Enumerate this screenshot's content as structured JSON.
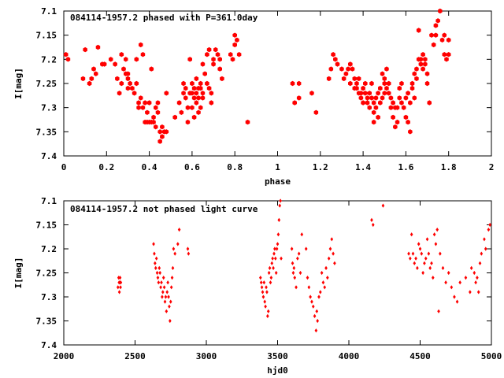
{
  "theme": {
    "background": "#ffffff",
    "point_color": "#ff0000",
    "axis_color": "#000000"
  },
  "chart_data": [
    {
      "type": "scatter",
      "title": "084114-1957.2 phased with P=361.0day",
      "xlabel": "phase",
      "ylabel": "I[mag]",
      "xlim": [
        0,
        2
      ],
      "ylim": [
        7.1,
        7.4
      ],
      "y_inverted": true,
      "grid": false,
      "marker": "filled-hexagon",
      "xticks": [
        "0",
        "0.2",
        "0.4",
        "0.6",
        "0.8",
        "1",
        "1.2",
        "1.4",
        "1.6",
        "1.8",
        "2"
      ],
      "yticks": [
        "7.1",
        "7.15",
        "7.2",
        "7.25",
        "7.3",
        "7.35",
        "7.4"
      ],
      "points": [
        [
          0.01,
          7.19
        ],
        [
          0.02,
          7.2
        ],
        [
          0.1,
          7.18
        ],
        [
          0.09,
          7.24
        ],
        [
          0.12,
          7.25
        ],
        [
          0.13,
          7.24
        ],
        [
          0.14,
          7.22
        ],
        [
          0.15,
          7.23
        ],
        [
          0.16,
          7.175
        ],
        [
          0.18,
          7.21
        ],
        [
          0.19,
          7.21
        ],
        [
          0.22,
          7.2
        ],
        [
          0.24,
          7.21
        ],
        [
          0.25,
          7.24
        ],
        [
          0.26,
          7.27
        ],
        [
          0.27,
          7.25
        ],
        [
          0.27,
          7.19
        ],
        [
          0.28,
          7.22
        ],
        [
          0.29,
          7.2
        ],
        [
          0.29,
          7.23
        ],
        [
          0.3,
          7.23
        ],
        [
          0.3,
          7.26
        ],
        [
          0.3,
          7.24
        ],
        [
          0.31,
          7.25
        ],
        [
          0.32,
          7.26
        ],
        [
          0.33,
          7.27
        ],
        [
          0.34,
          7.25
        ],
        [
          0.34,
          7.2
        ],
        [
          0.35,
          7.29
        ],
        [
          0.35,
          7.3
        ],
        [
          0.36,
          7.28
        ],
        [
          0.36,
          7.17
        ],
        [
          0.37,
          7.19
        ],
        [
          0.37,
          7.3
        ],
        [
          0.38,
          7.29
        ],
        [
          0.38,
          7.33
        ],
        [
          0.39,
          7.31
        ],
        [
          0.39,
          7.33
        ],
        [
          0.4,
          7.29
        ],
        [
          0.4,
          7.33
        ],
        [
          0.41,
          7.33
        ],
        [
          0.41,
          7.22
        ],
        [
          0.42,
          7.33
        ],
        [
          0.42,
          7.32
        ],
        [
          0.43,
          7.34
        ],
        [
          0.43,
          7.3
        ],
        [
          0.44,
          7.29
        ],
        [
          0.44,
          7.31
        ],
        [
          0.45,
          7.35
        ],
        [
          0.45,
          7.37
        ],
        [
          0.46,
          7.36
        ],
        [
          0.46,
          7.34
        ],
        [
          0.47,
          7.35
        ],
        [
          0.48,
          7.27
        ],
        [
          0.48,
          7.35
        ],
        [
          0.52,
          7.32
        ],
        [
          0.54,
          7.29
        ],
        [
          0.55,
          7.31
        ],
        [
          0.56,
          7.27
        ],
        [
          0.56,
          7.25
        ],
        [
          0.57,
          7.26
        ],
        [
          0.57,
          7.28
        ],
        [
          0.58,
          7.3
        ],
        [
          0.58,
          7.33
        ],
        [
          0.59,
          7.2
        ],
        [
          0.59,
          7.27
        ],
        [
          0.6,
          7.25
        ],
        [
          0.6,
          7.27
        ],
        [
          0.6,
          7.3
        ],
        [
          0.61,
          7.32
        ],
        [
          0.61,
          7.26
        ],
        [
          0.61,
          7.28
        ],
        [
          0.62,
          7.24
        ],
        [
          0.62,
          7.27
        ],
        [
          0.62,
          7.29
        ],
        [
          0.63,
          7.31
        ],
        [
          0.63,
          7.26
        ],
        [
          0.63,
          7.28
        ],
        [
          0.64,
          7.25
        ],
        [
          0.64,
          7.3
        ],
        [
          0.64,
          7.26
        ],
        [
          0.65,
          7.27
        ],
        [
          0.65,
          7.21
        ],
        [
          0.65,
          7.28
        ],
        [
          0.66,
          7.23
        ],
        [
          0.67,
          7.25
        ],
        [
          0.67,
          7.19
        ],
        [
          0.68,
          7.18
        ],
        [
          0.68,
          7.26
        ],
        [
          0.69,
          7.27
        ],
        [
          0.69,
          7.29
        ],
        [
          0.7,
          7.21
        ],
        [
          0.7,
          7.2
        ],
        [
          0.71,
          7.18
        ],
        [
          0.72,
          7.19
        ],
        [
          0.73,
          7.2
        ],
        [
          0.73,
          7.22
        ],
        [
          0.74,
          7.24
        ],
        [
          0.78,
          7.19
        ],
        [
          0.79,
          7.2
        ],
        [
          0.8,
          7.15
        ],
        [
          0.8,
          7.17
        ],
        [
          0.81,
          7.16
        ],
        [
          0.82,
          7.19
        ],
        [
          0.86,
          7.33
        ],
        [
          1.07,
          7.25
        ],
        [
          1.08,
          7.29
        ],
        [
          1.1,
          7.25
        ],
        [
          1.1,
          7.28
        ],
        [
          1.16,
          7.27
        ],
        [
          1.18,
          7.31
        ],
        [
          1.24,
          7.24
        ],
        [
          1.25,
          7.22
        ],
        [
          1.26,
          7.19
        ],
        [
          1.27,
          7.2
        ],
        [
          1.28,
          7.21
        ],
        [
          1.3,
          7.22
        ],
        [
          1.31,
          7.24
        ],
        [
          1.32,
          7.23
        ],
        [
          1.33,
          7.22
        ],
        [
          1.34,
          7.25
        ],
        [
          1.34,
          7.21
        ],
        [
          1.35,
          7.22
        ],
        [
          1.36,
          7.24
        ],
        [
          1.36,
          7.26
        ],
        [
          1.37,
          7.25
        ],
        [
          1.37,
          7.26
        ],
        [
          1.38,
          7.24
        ],
        [
          1.38,
          7.27
        ],
        [
          1.39,
          7.27
        ],
        [
          1.39,
          7.28
        ],
        [
          1.4,
          7.26
        ],
        [
          1.4,
          7.29
        ],
        [
          1.41,
          7.27
        ],
        [
          1.41,
          7.25
        ],
        [
          1.42,
          7.28
        ],
        [
          1.42,
          7.29
        ],
        [
          1.43,
          7.3
        ],
        [
          1.43,
          7.27
        ],
        [
          1.44,
          7.28
        ],
        [
          1.44,
          7.25
        ],
        [
          1.45,
          7.29
        ],
        [
          1.45,
          7.31
        ],
        [
          1.45,
          7.33
        ],
        [
          1.46,
          7.28
        ],
        [
          1.46,
          7.3
        ],
        [
          1.47,
          7.32
        ],
        [
          1.47,
          7.27
        ],
        [
          1.48,
          7.29
        ],
        [
          1.48,
          7.26
        ],
        [
          1.49,
          7.23
        ],
        [
          1.49,
          7.28
        ],
        [
          1.5,
          7.25
        ],
        [
          1.5,
          7.27
        ],
        [
          1.5,
          7.24
        ],
        [
          1.51,
          7.22
        ],
        [
          1.51,
          7.26
        ],
        [
          1.52,
          7.25
        ],
        [
          1.52,
          7.27
        ],
        [
          1.53,
          7.3
        ],
        [
          1.53,
          7.28
        ],
        [
          1.54,
          7.29
        ],
        [
          1.54,
          7.32
        ],
        [
          1.55,
          7.3
        ],
        [
          1.55,
          7.34
        ],
        [
          1.56,
          7.33
        ],
        [
          1.56,
          7.3
        ],
        [
          1.57,
          7.28
        ],
        [
          1.57,
          7.26
        ],
        [
          1.58,
          7.25
        ],
        [
          1.58,
          7.29
        ],
        [
          1.59,
          7.3
        ],
        [
          1.6,
          7.32
        ],
        [
          1.6,
          7.28
        ],
        [
          1.61,
          7.27
        ],
        [
          1.61,
          7.33
        ],
        [
          1.62,
          7.35
        ],
        [
          1.62,
          7.29
        ],
        [
          1.63,
          7.26
        ],
        [
          1.63,
          7.25
        ],
        [
          1.64,
          7.23
        ],
        [
          1.64,
          7.28
        ],
        [
          1.65,
          7.24
        ],
        [
          1.65,
          7.22
        ],
        [
          1.66,
          7.2
        ],
        [
          1.66,
          7.14
        ],
        [
          1.67,
          7.2
        ],
        [
          1.67,
          7.21
        ],
        [
          1.68,
          7.22
        ],
        [
          1.68,
          7.19
        ],
        [
          1.69,
          7.21
        ],
        [
          1.69,
          7.2
        ],
        [
          1.7,
          7.25
        ],
        [
          1.7,
          7.23
        ],
        [
          1.71,
          7.29
        ],
        [
          1.72,
          7.15
        ],
        [
          1.73,
          7.17
        ],
        [
          1.74,
          7.15
        ],
        [
          1.74,
          7.13
        ],
        [
          1.75,
          7.12
        ],
        [
          1.76,
          7.1
        ],
        [
          1.77,
          7.16
        ],
        [
          1.78,
          7.19
        ],
        [
          1.78,
          7.15
        ],
        [
          1.79,
          7.2
        ],
        [
          1.8,
          7.19
        ],
        [
          1.8,
          7.16
        ]
      ]
    },
    {
      "type": "scatter",
      "title": "084114-1957.2 not phased light curve",
      "xlabel": "hjd0",
      "ylabel": "I[mag]",
      "xlim": [
        2000,
        5000
      ],
      "ylim": [
        7.1,
        7.4
      ],
      "y_inverted": true,
      "grid": false,
      "marker": "filled-diamond",
      "xticks": [
        "2000",
        "2500",
        "3000",
        "3500",
        "4000",
        "4500",
        "5000"
      ],
      "yticks": [
        "7.1",
        "7.15",
        "7.2",
        "7.25",
        "7.3",
        "7.35",
        "7.4"
      ],
      "points": [
        [
          2380,
          7.28
        ],
        [
          2385,
          7.26
        ],
        [
          2388,
          7.27
        ],
        [
          2390,
          7.29
        ],
        [
          2393,
          7.27
        ],
        [
          2395,
          7.26
        ],
        [
          2398,
          7.28
        ],
        [
          2400,
          7.27
        ],
        [
          2630,
          7.19
        ],
        [
          2635,
          7.21
        ],
        [
          2640,
          7.23
        ],
        [
          2645,
          7.24
        ],
        [
          2650,
          7.22
        ],
        [
          2655,
          7.25
        ],
        [
          2660,
          7.26
        ],
        [
          2665,
          7.27
        ],
        [
          2670,
          7.24
        ],
        [
          2675,
          7.25
        ],
        [
          2680,
          7.28
        ],
        [
          2685,
          7.27
        ],
        [
          2690,
          7.3
        ],
        [
          2695,
          7.29
        ],
        [
          2700,
          7.26
        ],
        [
          2705,
          7.28
        ],
        [
          2710,
          7.31
        ],
        [
          2715,
          7.3
        ],
        [
          2720,
          7.33
        ],
        [
          2725,
          7.29
        ],
        [
          2730,
          7.27
        ],
        [
          2735,
          7.3
        ],
        [
          2740,
          7.32
        ],
        [
          2745,
          7.35
        ],
        [
          2750,
          7.31
        ],
        [
          2755,
          7.28
        ],
        [
          2760,
          7.26
        ],
        [
          2765,
          7.24
        ],
        [
          2770,
          7.2
        ],
        [
          2780,
          7.21
        ],
        [
          2800,
          7.19
        ],
        [
          2810,
          7.16
        ],
        [
          2870,
          7.2
        ],
        [
          2875,
          7.21
        ],
        [
          3380,
          7.26
        ],
        [
          3385,
          7.27
        ],
        [
          3390,
          7.28
        ],
        [
          3395,
          7.29
        ],
        [
          3400,
          7.3
        ],
        [
          3405,
          7.27
        ],
        [
          3410,
          7.31
        ],
        [
          3415,
          7.32
        ],
        [
          3420,
          7.28
        ],
        [
          3425,
          7.29
        ],
        [
          3430,
          7.34
        ],
        [
          3435,
          7.33
        ],
        [
          3440,
          7.25
        ],
        [
          3445,
          7.24
        ],
        [
          3450,
          7.27
        ],
        [
          3455,
          7.26
        ],
        [
          3460,
          7.23
        ],
        [
          3465,
          7.22
        ],
        [
          3470,
          7.24
        ],
        [
          3475,
          7.21
        ],
        [
          3480,
          7.2
        ],
        [
          3485,
          7.22
        ],
        [
          3490,
          7.25
        ],
        [
          3495,
          7.2
        ],
        [
          3500,
          7.19
        ],
        [
          3505,
          7.17
        ],
        [
          3510,
          7.14
        ],
        [
          3515,
          7.11
        ],
        [
          3520,
          7.1
        ],
        [
          3525,
          7.22
        ],
        [
          3600,
          7.2
        ],
        [
          3605,
          7.23
        ],
        [
          3610,
          7.25
        ],
        [
          3615,
          7.24
        ],
        [
          3620,
          7.26
        ],
        [
          3630,
          7.28
        ],
        [
          3640,
          7.22
        ],
        [
          3650,
          7.21
        ],
        [
          3660,
          7.25
        ],
        [
          3670,
          7.17
        ],
        [
          3700,
          7.2
        ],
        [
          3710,
          7.26
        ],
        [
          3720,
          7.28
        ],
        [
          3730,
          7.3
        ],
        [
          3740,
          7.31
        ],
        [
          3750,
          7.32
        ],
        [
          3760,
          7.34
        ],
        [
          3770,
          7.37
        ],
        [
          3775,
          7.33
        ],
        [
          3780,
          7.35
        ],
        [
          3790,
          7.3
        ],
        [
          3800,
          7.29
        ],
        [
          3810,
          7.25
        ],
        [
          3820,
          7.27
        ],
        [
          3830,
          7.28
        ],
        [
          3840,
          7.24
        ],
        [
          3850,
          7.26
        ],
        [
          3860,
          7.22
        ],
        [
          3870,
          7.2
        ],
        [
          3880,
          7.18
        ],
        [
          3890,
          7.21
        ],
        [
          3900,
          7.23
        ],
        [
          4160,
          7.14
        ],
        [
          4170,
          7.15
        ],
        [
          4240,
          7.11
        ],
        [
          4420,
          7.21
        ],
        [
          4430,
          7.22
        ],
        [
          4440,
          7.17
        ],
        [
          4450,
          7.21
        ],
        [
          4460,
          7.23
        ],
        [
          4470,
          7.22
        ],
        [
          4480,
          7.24
        ],
        [
          4490,
          7.19
        ],
        [
          4500,
          7.2
        ],
        [
          4510,
          7.21
        ],
        [
          4520,
          7.25
        ],
        [
          4530,
          7.23
        ],
        [
          4540,
          7.22
        ],
        [
          4550,
          7.18
        ],
        [
          4560,
          7.21
        ],
        [
          4570,
          7.24
        ],
        [
          4580,
          7.23
        ],
        [
          4590,
          7.26
        ],
        [
          4600,
          7.17
        ],
        [
          4610,
          7.19
        ],
        [
          4620,
          7.16
        ],
        [
          4630,
          7.33
        ],
        [
          4640,
          7.21
        ],
        [
          4660,
          7.24
        ],
        [
          4680,
          7.27
        ],
        [
          4700,
          7.25
        ],
        [
          4720,
          7.28
        ],
        [
          4740,
          7.3
        ],
        [
          4760,
          7.31
        ],
        [
          4780,
          7.27
        ],
        [
          4820,
          7.26
        ],
        [
          4850,
          7.29
        ],
        [
          4860,
          7.24
        ],
        [
          4880,
          7.25
        ],
        [
          4890,
          7.27
        ],
        [
          4900,
          7.26
        ],
        [
          4910,
          7.29
        ],
        [
          4920,
          7.23
        ],
        [
          4930,
          7.21
        ],
        [
          4950,
          7.18
        ],
        [
          4960,
          7.2
        ],
        [
          4980,
          7.16
        ],
        [
          4990,
          7.15
        ]
      ]
    }
  ]
}
